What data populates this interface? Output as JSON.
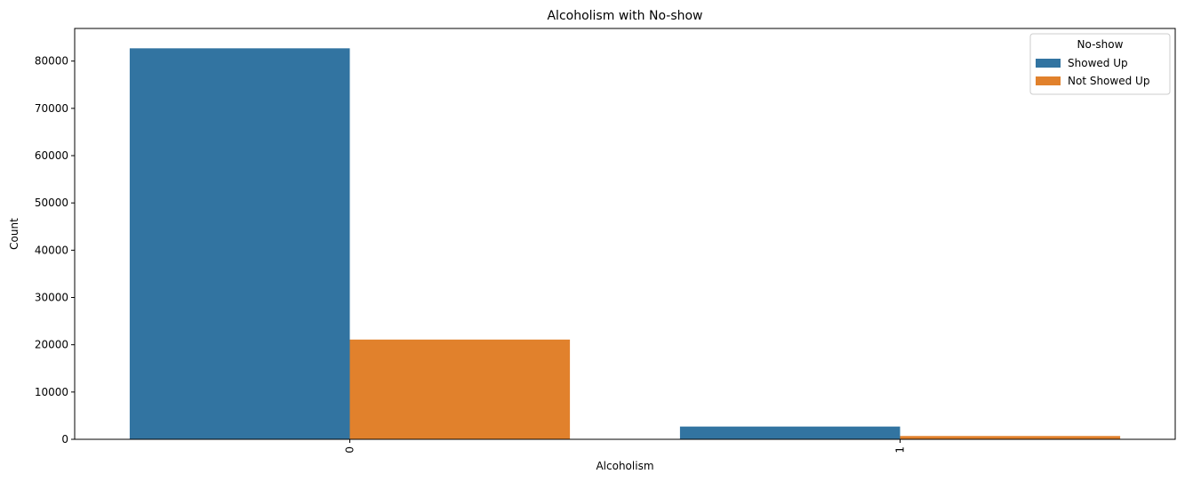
{
  "chart_data": {
    "type": "bar",
    "title": "Alcoholism with No-show",
    "xlabel": "Alcoholism",
    "ylabel": "Count",
    "categories": [
      "0",
      "1"
    ],
    "series": [
      {
        "name": "Showed Up",
        "color": "#3274a1",
        "values": [
          82700,
          2700
        ]
      },
      {
        "name": "Not Showed Up",
        "color": "#e1812c",
        "values": [
          21100,
          700
        ]
      }
    ],
    "ylim": [
      0,
      86900
    ],
    "yticks": [
      0,
      10000,
      20000,
      30000,
      40000,
      50000,
      60000,
      70000,
      80000
    ],
    "legend": {
      "title": "No-show",
      "placement": "top-right"
    },
    "grid": false,
    "xtick_rotation": 90
  }
}
